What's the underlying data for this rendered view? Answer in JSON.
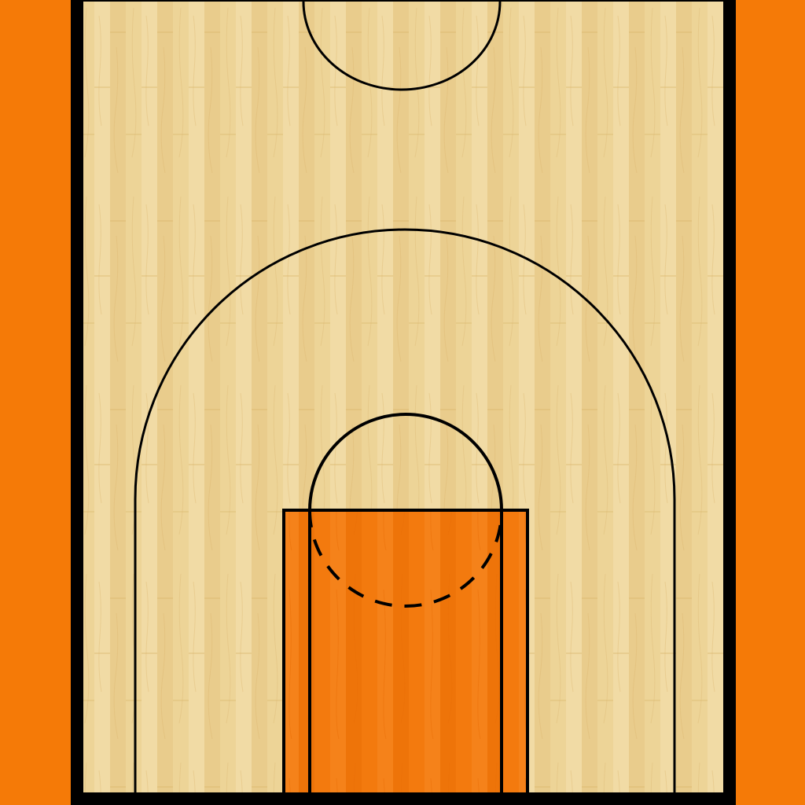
{
  "colors": {
    "background": "#F57A07",
    "border": "#000000",
    "floor_light": "#EFD59A",
    "floor_mid": "#E8C985",
    "floor_grain": "#D9B26A",
    "paint": "#F47C10",
    "paint_grain": "#E96D05",
    "line": "#000000"
  },
  "icons": {
    "court": "basketball-half-court"
  }
}
